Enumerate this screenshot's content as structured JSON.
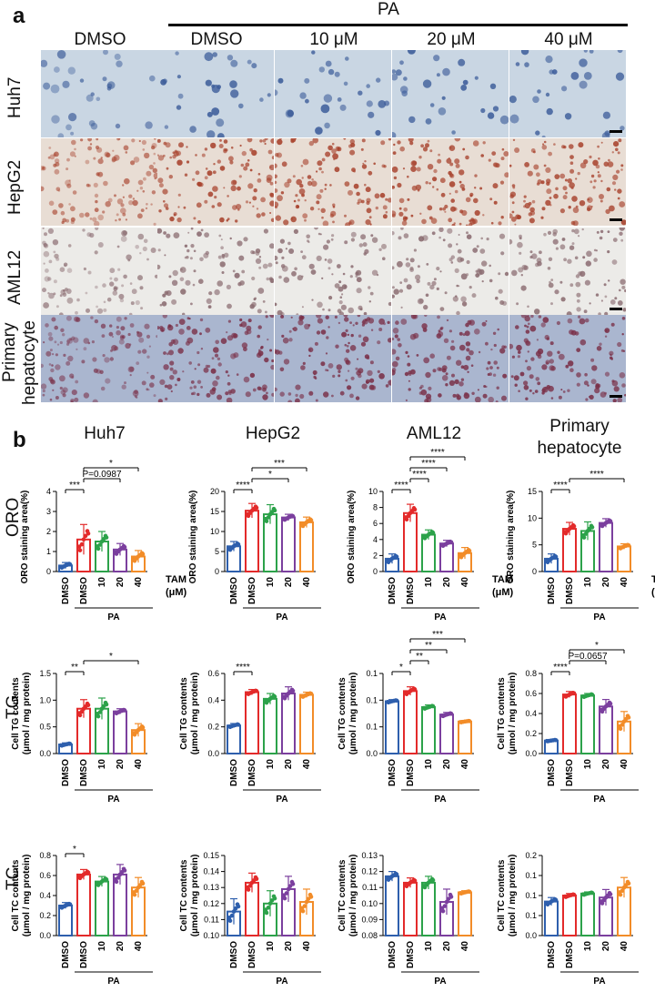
{
  "panel_a": {
    "letter": "a",
    "pa_label": "PA",
    "columns": [
      "DMSO",
      "DMSO",
      "10 μM",
      "20 μM",
      "40 μM"
    ],
    "rows": [
      {
        "label": "Huh7",
        "base": "#c9d6e3",
        "stain": "#3d5d9a"
      },
      {
        "label": "HepG2",
        "base": "#e8ddd4",
        "stain": "#a8432e"
      },
      {
        "label": "AML12",
        "base": "#ecebe8",
        "stain": "#8a6b70"
      },
      {
        "label": "Primary hepatocyte",
        "label_lines": [
          "Primary",
          "hepatocyte"
        ],
        "base": "#aab6cf",
        "stain": "#7a3048"
      }
    ]
  },
  "panel_b": {
    "letter": "b",
    "row_labels": [
      "ORO",
      "TG",
      "TC"
    ],
    "column_titles": [
      [
        "Huh7"
      ],
      [
        "HepG2"
      ],
      [
        "AML12"
      ],
      [
        "Primary",
        "hepatocyte"
      ]
    ],
    "x_categories": [
      "DMSO",
      "DMSO",
      "10",
      "20",
      "40"
    ],
    "pa_label": "PA",
    "tam_label": "TAM",
    "tam_unit": "(μM)",
    "colors": [
      "#2e5fad",
      "#e32a2a",
      "#2ca24a",
      "#7b3f9e",
      "#f28c28"
    ]
  },
  "chart_data": [
    {
      "type": "bar",
      "group": "ORO",
      "cell": "Huh7",
      "ylabel": "ORO staining area(%)",
      "yticks": [
        0,
        1,
        2,
        3,
        4
      ],
      "ylim": [
        0,
        4
      ],
      "values": [
        0.3,
        1.6,
        1.5,
        1.1,
        0.75
      ],
      "errors": [
        0.15,
        0.75,
        0.5,
        0.3,
        0.3
      ],
      "sig": [
        {
          "a": 0,
          "b": 1,
          "text": "***"
        },
        {
          "a": 1,
          "b": 3,
          "text": "P=0.0987"
        },
        {
          "a": 1,
          "b": 4,
          "text": "*"
        }
      ],
      "show_tam": true
    },
    {
      "type": "bar",
      "group": "ORO",
      "cell": "HepG2",
      "ylabel": "ORO staining area(%)",
      "yticks": [
        0,
        5,
        10,
        15,
        20
      ],
      "ylim": [
        0,
        20
      ],
      "values": [
        6.3,
        15.2,
        14.3,
        13.5,
        12.3
      ],
      "errors": [
        1.2,
        1.8,
        2.4,
        0.8,
        1.3
      ],
      "sig": [
        {
          "a": 0,
          "b": 1,
          "text": "****"
        },
        {
          "a": 1,
          "b": 3,
          "text": "*"
        },
        {
          "a": 1,
          "b": 4,
          "text": "***"
        }
      ],
      "show_tam": false
    },
    {
      "type": "bar",
      "group": "ORO",
      "cell": "AML12",
      "ylabel": "ORO staining area(%)",
      "yticks": [
        0,
        2,
        4,
        6,
        8,
        10
      ],
      "ylim": [
        0,
        10
      ],
      "values": [
        1.6,
        7.3,
        4.6,
        3.5,
        2.3
      ],
      "errors": [
        0.6,
        1.1,
        0.6,
        0.4,
        0.7
      ],
      "sig": [
        {
          "a": 0,
          "b": 1,
          "text": "****"
        },
        {
          "a": 1,
          "b": 2,
          "text": "****"
        },
        {
          "a": 1,
          "b": 3,
          "text": "****"
        },
        {
          "a": 1,
          "b": 4,
          "text": "****"
        }
      ],
      "show_tam": true
    },
    {
      "type": "bar",
      "group": "ORO",
      "cell": "Primary hepatocyte",
      "ylabel": "ORO staining area(%)",
      "yticks": [
        0,
        5,
        10,
        15
      ],
      "ylim": [
        0,
        15
      ],
      "values": [
        2.4,
        8.0,
        7.6,
        9.1,
        4.7
      ],
      "errors": [
        0.9,
        1.2,
        1.7,
        0.8,
        0.5
      ],
      "sig": [
        {
          "a": 0,
          "b": 1,
          "text": "****"
        },
        {
          "a": 1,
          "b": 4,
          "text": "****"
        }
      ],
      "show_tam": true
    },
    {
      "type": "bar",
      "group": "TG",
      "cell": "Huh7",
      "ylabel": "Cell TG contents (μmol / mg protein)",
      "yticks": [
        0.0,
        0.5,
        1.0,
        1.5
      ],
      "ylim": [
        0,
        1.5
      ],
      "values": [
        0.17,
        0.84,
        0.84,
        0.79,
        0.44
      ],
      "errors": [
        0.03,
        0.17,
        0.2,
        0.05,
        0.12
      ],
      "sig": [
        {
          "a": 0,
          "b": 1,
          "text": "**"
        },
        {
          "a": 1,
          "b": 4,
          "text": "*"
        }
      ],
      "show_tam": false
    },
    {
      "type": "bar",
      "group": "TG",
      "cell": "HepG2",
      "ylabel": "Cell TG contents (μmol / mg protein)",
      "yticks": [
        0.0,
        0.2,
        0.4,
        0.6
      ],
      "ylim": [
        0,
        0.6
      ],
      "values": [
        0.21,
        0.46,
        0.41,
        0.45,
        0.44
      ],
      "errors": [
        0.015,
        0.02,
        0.04,
        0.05,
        0.02
      ],
      "sig": [
        {
          "a": 0,
          "b": 1,
          "text": "****"
        }
      ],
      "show_tam": false
    },
    {
      "type": "bar",
      "group": "TG",
      "cell": "AML12",
      "ylabel": "Cell TG contents (μmol / mg protein)",
      "yticks": [
        0.0,
        0.05,
        0.1,
        0.15
      ],
      "ylim": [
        0,
        0.15
      ],
      "values": [
        0.098,
        0.117,
        0.087,
        0.073,
        0.06
      ],
      "errors": [
        0.003,
        0.008,
        0.004,
        0.004,
        0.002
      ],
      "sig": [
        {
          "a": 0,
          "b": 1,
          "text": "*"
        },
        {
          "a": 1,
          "b": 2,
          "text": "**"
        },
        {
          "a": 1,
          "b": 3,
          "text": "**"
        },
        {
          "a": 1,
          "b": 4,
          "text": "***"
        }
      ],
      "show_tam": false
    },
    {
      "type": "bar",
      "group": "TG",
      "cell": "Primary hepatocyte",
      "ylabel": "Cell TG contents (μmol / mg protein)",
      "yticks": [
        0.0,
        0.2,
        0.4,
        0.6,
        0.8
      ],
      "ylim": [
        0,
        0.8
      ],
      "values": [
        0.13,
        0.59,
        0.58,
        0.47,
        0.32
      ],
      "errors": [
        0.01,
        0.03,
        0.02,
        0.07,
        0.1
      ],
      "sig": [
        {
          "a": 0,
          "b": 1,
          "text": "****"
        },
        {
          "a": 1,
          "b": 3,
          "text": "P=0.0657"
        },
        {
          "a": 1,
          "b": 4,
          "text": "*"
        }
      ],
      "show_tam": false
    },
    {
      "type": "bar",
      "group": "TC",
      "cell": "Huh7",
      "ylabel": "Cell TC contents (μmol / mg protein)",
      "yticks": [
        0.0,
        0.2,
        0.4,
        0.6,
        0.8
      ],
      "ylim": [
        0,
        0.8
      ],
      "values": [
        0.3,
        0.61,
        0.54,
        0.61,
        0.48
      ],
      "errors": [
        0.03,
        0.05,
        0.05,
        0.1,
        0.1
      ],
      "sig": [
        {
          "a": 0,
          "b": 1,
          "text": "*"
        }
      ],
      "show_tam": false
    },
    {
      "type": "bar",
      "group": "TC",
      "cell": "HepG2",
      "ylabel": "Cell TC contents (μmol / mg protein)",
      "yticks": [
        0.1,
        0.11,
        0.12,
        0.13,
        0.14,
        0.15
      ],
      "ylim": [
        0.1,
        0.15
      ],
      "values": [
        0.115,
        0.133,
        0.12,
        0.129,
        0.121
      ],
      "errors": [
        0.008,
        0.006,
        0.008,
        0.008,
        0.008
      ],
      "sig": [],
      "show_tam": false
    },
    {
      "type": "bar",
      "group": "TC",
      "cell": "AML12",
      "ylabel": "Cell TC contents (μmol / mg protein)",
      "yticks": [
        0.08,
        0.09,
        0.1,
        0.11,
        0.12,
        0.13
      ],
      "ylim": [
        0.08,
        0.13
      ],
      "values": [
        0.117,
        0.113,
        0.113,
        0.101,
        0.107
      ],
      "errors": [
        0.003,
        0.003,
        0.004,
        0.008,
        0.001
      ],
      "sig": [],
      "show_tam": false
    },
    {
      "type": "bar",
      "group": "TC",
      "cell": "Primary hepatocyte",
      "ylabel": "Cell TC contents (μmol / mg protein)",
      "yticks": [
        0.0,
        0.05,
        0.1,
        0.15,
        0.2
      ],
      "ylim": [
        0,
        0.2
      ],
      "values": [
        0.085,
        0.1,
        0.105,
        0.095,
        0.12
      ],
      "errors": [
        0.01,
        0.005,
        0.004,
        0.02,
        0.025
      ],
      "sig": [],
      "show_tam": false
    }
  ]
}
